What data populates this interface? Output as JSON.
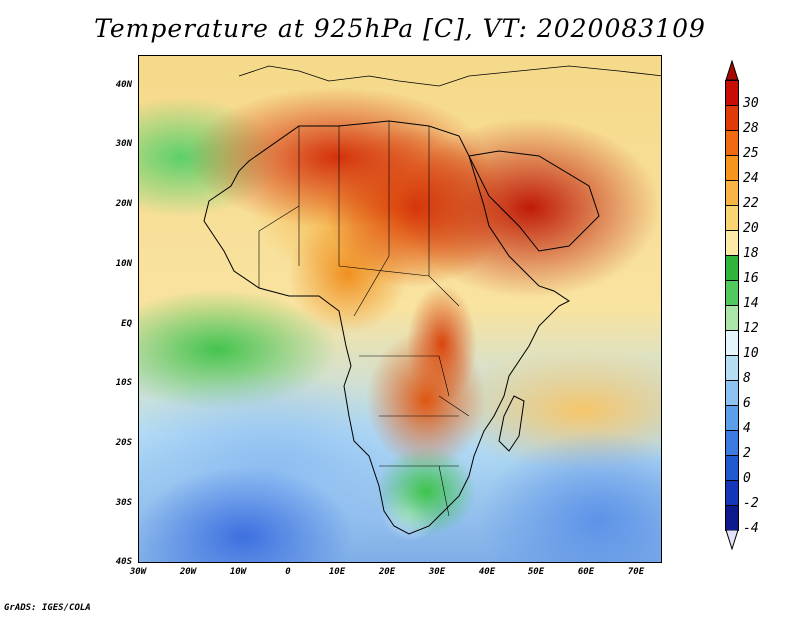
{
  "title": "Temperature at 925hPa [C], VT: 2020083109",
  "footer": "GrADS: IGES/COLA",
  "map": {
    "lat_labels": [
      "40N",
      "30N",
      "20N",
      "10N",
      "EQ",
      "10S",
      "20S",
      "30S",
      "40S"
    ],
    "lon_labels": [
      "30W",
      "20W",
      "10W",
      "0",
      "10E",
      "20E",
      "30E",
      "40E",
      "50E",
      "60E",
      "70E"
    ]
  },
  "colorbar": {
    "labels": [
      "30",
      "28",
      "25",
      "24",
      "22",
      "20",
      "18",
      "16",
      "14",
      "12",
      "10",
      "8",
      "6",
      "4",
      "2",
      "0",
      "-2",
      "-4"
    ],
    "colors": [
      "#c80e04",
      "#e03a0a",
      "#f06a12",
      "#f5951e",
      "#f8b444",
      "#fbd472",
      "#fdeaa6",
      "#2fb43c",
      "#52c95c",
      "#a9e6a8",
      "#e4f6fb",
      "#b5def5",
      "#8cc3f0",
      "#5d9ee8",
      "#3d7be0",
      "#2058d0",
      "#1436b8",
      "#0c1a8c"
    ],
    "top_arrow_color": "#a80a02",
    "bottom_arrow_color": "#e3e3fa"
  }
}
